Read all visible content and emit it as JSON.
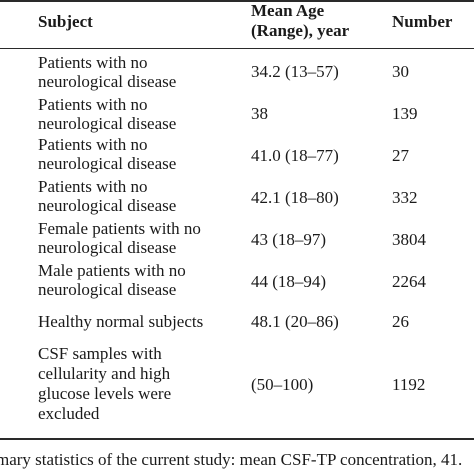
{
  "table": {
    "headers": {
      "subject": "Subject",
      "age_line1": "Mean Age",
      "age_line2": "(Range), year",
      "number": "Number"
    },
    "rows": [
      {
        "subject": [
          "Patients with no",
          "neurological disease"
        ],
        "age": "34.2 (13–57)",
        "number": "30"
      },
      {
        "subject": [
          "Patients with no",
          "neurological disease"
        ],
        "age": "38",
        "number": "139"
      },
      {
        "subject": [
          "Patients with no",
          "neurological disease"
        ],
        "age": "41.0 (18–77)",
        "number": "27"
      },
      {
        "subject": [
          "Patients with no",
          "neurological disease"
        ],
        "age": "42.1 (18–80)",
        "number": "332"
      },
      {
        "subject": [
          "Female patients with no",
          "neurological disease"
        ],
        "age": "43 (18–97)",
        "number": "3804"
      },
      {
        "subject": [
          "Male patients with no",
          "neurological disease"
        ],
        "age": "44 (18–94)",
        "number": "2264"
      },
      {
        "subject": [
          "Healthy normal subjects"
        ],
        "age": "48.1 (20–86)",
        "number": "26"
      },
      {
        "subject": [
          "CSF samples with",
          "cellularity and high",
          "glucose levels were",
          "excluded"
        ],
        "age": "(50–100)",
        "number": "1192"
      }
    ]
  },
  "caption": "mary statistics of the current study: mean CSF-TP concentration, 41."
}
